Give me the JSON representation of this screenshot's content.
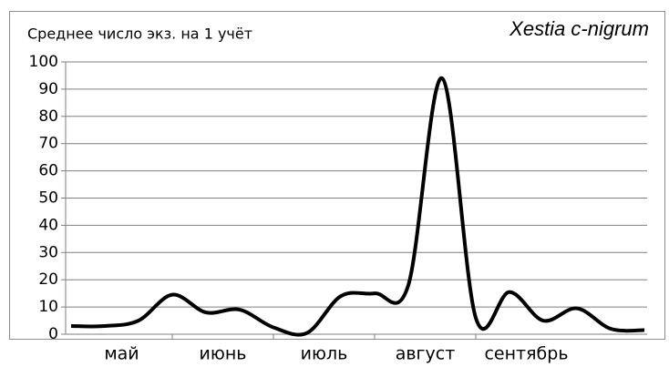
{
  "chart_data": {
    "type": "line",
    "title": "Среднее число экз. на 1 учёт",
    "subtitle": "Xestia c-nigrum",
    "categories": [
      null,
      null,
      null,
      null,
      null,
      null,
      null,
      null,
      null,
      null,
      null,
      null,
      null,
      null,
      null,
      null,
      null,
      null
    ],
    "x_groups": [
      "май",
      "июнь",
      "июль",
      "август",
      "сентябрь"
    ],
    "series": [
      {
        "color": "#000000",
        "values": [
          3,
          3,
          5,
          14.5,
          8,
          9,
          2.5,
          0.5,
          14,
          15,
          18,
          94,
          6,
          15.5,
          5,
          9.5,
          2,
          1.5
        ]
      }
    ],
    "ylim": [
      0,
      100
    ],
    "yticks": [
      0,
      10,
      20,
      30,
      40,
      50,
      60,
      70,
      80,
      90,
      100
    ],
    "grid": true,
    "smooth": true
  }
}
